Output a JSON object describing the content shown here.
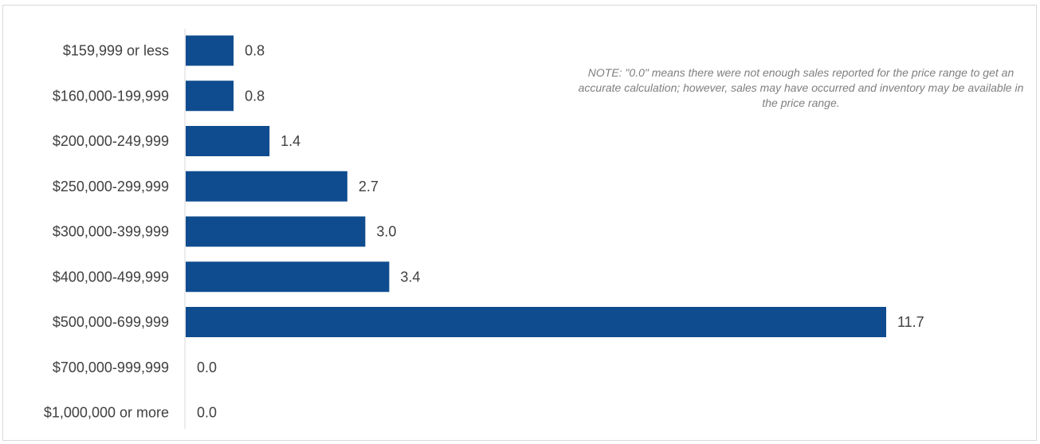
{
  "chart_data": {
    "type": "bar",
    "orientation": "horizontal",
    "categories": [
      "$159,999 or less",
      "$160,000-199,999",
      "$200,000-249,999",
      "$250,000-299,999",
      "$300,000-399,999",
      "$400,000-499,999",
      "$500,000-699,999",
      "$700,000-999,999",
      "$1,000,000 or more"
    ],
    "values": [
      0.8,
      0.8,
      1.4,
      2.7,
      3.0,
      3.4,
      11.7,
      0.0,
      0.0
    ],
    "value_labels": [
      "0.8",
      "0.8",
      "1.4",
      "2.7",
      "3.0",
      "3.4",
      "11.7",
      "0.0",
      "0.0"
    ],
    "xlim": [
      0,
      11.7
    ],
    "grid": false,
    "legend": "none",
    "bar_color": "#0f4c8f",
    "annotation": "NOTE: \"0.0\" means there were not enough sales reported for the price range to get an accurate calculation;  however, sales may have occurred and inventory may be available in the price range."
  }
}
